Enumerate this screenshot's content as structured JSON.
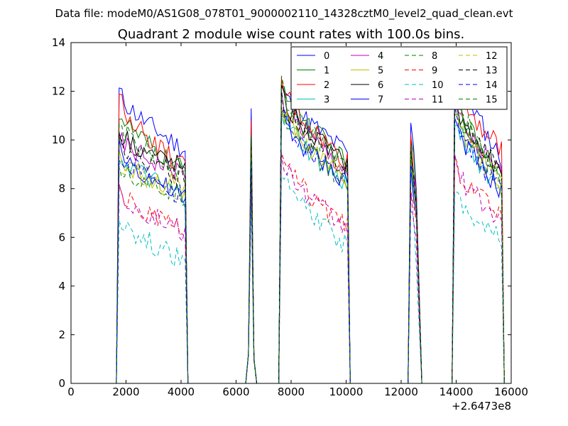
{
  "chart_data": {
    "type": "line",
    "suptitle": "Data file: modeM0/AS1G08_078T01_9000002110_14328cztM0_level2_quad_clean.evt",
    "title": "Quadrant 2 module wise count rates with 100.0s bins.",
    "xlabel": "",
    "ylabel": "",
    "x_offset_label": "+2.6473e8",
    "xlim": [
      0,
      16000
    ],
    "ylim": [
      0,
      14
    ],
    "x_ticks": [
      0,
      2000,
      4000,
      6000,
      8000,
      10000,
      12000,
      14000,
      16000
    ],
    "y_ticks": [
      0,
      2,
      4,
      6,
      8,
      10,
      12,
      14
    ],
    "x_tick_labels": [
      "0",
      "2000",
      "4000",
      "6000",
      "8000",
      "10000",
      "12000",
      "14000",
      "16000"
    ],
    "y_tick_labels": [
      "0",
      "2",
      "4",
      "6",
      "8",
      "10",
      "12",
      "14"
    ],
    "grid": false,
    "legend_position": "top-right",
    "legend_columns": 4,
    "segments": [
      {
        "x_start": 1750,
        "x_end": 4150,
        "shape": "decay",
        "peak_x": null
      },
      {
        "x_start": 6250,
        "x_end": 6750,
        "shape": "spike",
        "peak_x": 6550
      },
      {
        "x_start": 7650,
        "x_end": 10050,
        "shape": "decay",
        "peak_x": null
      },
      {
        "x_start": 12150,
        "x_end": 12750,
        "shape": "spike-decay",
        "peak_x": 12350
      },
      {
        "x_start": 13950,
        "x_end": 15650,
        "shape": "decay",
        "peak_x": null
      }
    ],
    "series": [
      {
        "name": "0",
        "color": "#0000ff",
        "dash": "solid",
        "segment_levels": [
          [
            12.0,
            9.6
          ],
          [
            11.3
          ],
          [
            12.2,
            9.5
          ],
          [
            10.7,
            7.0
          ],
          [
            13.7,
            9.2
          ]
        ]
      },
      {
        "name": "1",
        "color": "#008000",
        "dash": "solid",
        "segment_levels": [
          [
            11.2,
            8.7
          ],
          [
            10.3
          ],
          [
            12.6,
            9.0
          ],
          [
            10.1,
            6.6
          ],
          [
            12.0,
            8.6
          ]
        ]
      },
      {
        "name": "2",
        "color": "#ff0000",
        "dash": "solid",
        "segment_levels": [
          [
            11.8,
            8.8
          ],
          [
            10.8
          ],
          [
            12.4,
            9.1
          ],
          [
            10.2,
            6.7
          ],
          [
            12.6,
            9.6
          ]
        ]
      },
      {
        "name": "3",
        "color": "#00bfbf",
        "dash": "solid",
        "segment_levels": [
          [
            9.4,
            7.6
          ],
          [
            9.0
          ],
          [
            11.2,
            8.1
          ],
          [
            8.9,
            6.0
          ],
          [
            11.0,
            7.9
          ]
        ]
      },
      {
        "name": "4",
        "color": "#bf00bf",
        "dash": "solid",
        "segment_levels": [
          [
            10.0,
            8.6
          ],
          [
            9.6
          ],
          [
            11.8,
            8.7
          ],
          [
            9.5,
            6.3
          ],
          [
            11.5,
            8.5
          ]
        ]
      },
      {
        "name": "5",
        "color": "#bfbf00",
        "dash": "solid",
        "segment_levels": [
          [
            9.2,
            8.0
          ],
          [
            9.3
          ],
          [
            11.5,
            8.3
          ],
          [
            9.2,
            6.1
          ],
          [
            11.3,
            8.1
          ]
        ]
      },
      {
        "name": "6",
        "color": "#000000",
        "dash": "solid",
        "segment_levels": [
          [
            10.4,
            8.9
          ],
          [
            9.9
          ],
          [
            11.9,
            9.0
          ],
          [
            9.7,
            6.4
          ],
          [
            11.7,
            8.6
          ]
        ]
      },
      {
        "name": "7",
        "color": "#0000ff",
        "dash": "solid",
        "segment_levels": [
          [
            9.7,
            7.6
          ],
          [
            9.1
          ],
          [
            11.0,
            8.3
          ],
          [
            8.8,
            6.0
          ],
          [
            10.9,
            7.9
          ]
        ]
      },
      {
        "name": "8",
        "color": "#008000",
        "dash": "dashed",
        "segment_levels": [
          [
            9.0,
            7.7
          ],
          [
            10.1
          ],
          [
            11.4,
            8.2
          ],
          [
            9.3,
            6.2
          ],
          [
            11.4,
            8.3
          ]
        ]
      },
      {
        "name": "9",
        "color": "#ff0000",
        "dash": "dashed",
        "segment_levels": [
          [
            7.9,
            6.2
          ],
          [
            8.2
          ],
          [
            9.4,
            6.4
          ],
          [
            7.9,
            5.4
          ],
          [
            9.2,
            6.8
          ]
        ]
      },
      {
        "name": "10",
        "color": "#00bfbf",
        "dash": "dashed",
        "segment_levels": [
          [
            6.9,
            5.0
          ],
          [
            7.4
          ],
          [
            8.8,
            5.6
          ],
          [
            7.1,
            4.6
          ],
          [
            8.0,
            6.0
          ]
        ]
      },
      {
        "name": "11",
        "color": "#bf00bf",
        "dash": "dashed",
        "segment_levels": [
          [
            7.9,
            6.2
          ],
          [
            8.3
          ],
          [
            9.2,
            6.3
          ],
          [
            7.9,
            5.4
          ],
          [
            9.0,
            6.7
          ]
        ]
      },
      {
        "name": "12",
        "color": "#bfbf00",
        "dash": "dashed",
        "segment_levels": [
          [
            9.1,
            7.9
          ],
          [
            9.6
          ],
          [
            11.4,
            8.3
          ],
          [
            9.2,
            6.2
          ],
          [
            11.6,
            8.3
          ]
        ]
      },
      {
        "name": "13",
        "color": "#000000",
        "dash": "dashed",
        "segment_levels": [
          [
            10.0,
            8.4
          ],
          [
            9.8
          ],
          [
            11.7,
            8.8
          ],
          [
            9.5,
            6.3
          ],
          [
            11.8,
            8.8
          ]
        ]
      },
      {
        "name": "14",
        "color": "#0000ff",
        "dash": "dashed",
        "segment_levels": [
          [
            9.5,
            7.7
          ],
          [
            9.2
          ],
          [
            11.2,
            8.2
          ],
          [
            9.0,
            6.1
          ],
          [
            11.1,
            7.9
          ]
        ]
      },
      {
        "name": "15",
        "color": "#008000",
        "dash": "dashed",
        "segment_levels": [
          [
            10.6,
            8.7
          ],
          [
            10.2
          ],
          [
            12.2,
            8.9
          ],
          [
            9.8,
            6.4
          ],
          [
            12.0,
            8.7
          ]
        ]
      }
    ]
  }
}
